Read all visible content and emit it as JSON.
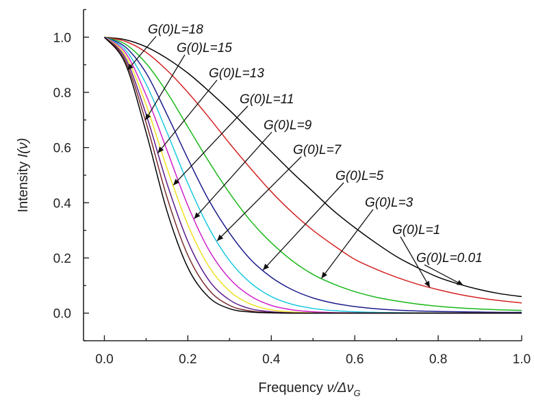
{
  "chart_data": {
    "type": "line",
    "xlabel_prefix": "Frequency",
    "xlabel_symbol": "ν/Δν",
    "xlabel_subscript": "G",
    "ylabel_prefix": "Intensity",
    "ylabel_symbol": "I(ν)",
    "xlim": [
      -0.05,
      1.0
    ],
    "ylim": [
      -0.1,
      1.1
    ],
    "x_ticks": [
      0.0,
      0.2,
      0.4,
      0.6,
      0.8,
      1.0
    ],
    "x_tick_labels": [
      "0.0",
      "0.2",
      "0.4",
      "0.6",
      "0.8",
      "1.0"
    ],
    "y_ticks": [
      0.0,
      0.2,
      0.4,
      0.6,
      0.8,
      1.0
    ],
    "y_tick_labels": [
      "0.0",
      "0.2",
      "0.4",
      "0.6",
      "0.8",
      "1.0"
    ],
    "grid": false,
    "label_prefix": "G(0)L",
    "series": [
      {
        "name": "G(0)L=0.01",
        "color": "#000000",
        "label_value": "=0.01",
        "x": [
          0.0,
          0.05,
          0.1,
          0.15,
          0.2,
          0.25,
          0.3,
          0.35,
          0.4,
          0.45,
          0.5,
          0.55,
          0.6,
          0.65,
          0.7,
          0.75,
          0.8,
          0.85,
          0.9,
          0.95,
          1.0
        ],
        "y": [
          1.0,
          0.991,
          0.965,
          0.923,
          0.87,
          0.805,
          0.735,
          0.66,
          0.585,
          0.51,
          0.44,
          0.37,
          0.31,
          0.255,
          0.205,
          0.165,
          0.13,
          0.105,
          0.085,
          0.07,
          0.06
        ]
      },
      {
        "name": "G(0)L=1",
        "color": "#d42020",
        "label_value": "=1",
        "x": [
          0.0,
          0.05,
          0.1,
          0.15,
          0.2,
          0.25,
          0.3,
          0.35,
          0.4,
          0.45,
          0.5,
          0.55,
          0.6,
          0.65,
          0.7,
          0.75,
          0.8,
          0.85,
          0.9,
          0.95,
          1.0
        ],
        "y": [
          1.0,
          0.985,
          0.945,
          0.88,
          0.8,
          0.71,
          0.615,
          0.525,
          0.44,
          0.365,
          0.3,
          0.245,
          0.195,
          0.16,
          0.13,
          0.105,
          0.085,
          0.068,
          0.055,
          0.045,
          0.037
        ]
      },
      {
        "name": "G(0)L=3",
        "color": "#18b818",
        "label_value": "=3",
        "x": [
          0.0,
          0.05,
          0.1,
          0.15,
          0.2,
          0.25,
          0.3,
          0.35,
          0.4,
          0.45,
          0.5,
          0.55,
          0.6,
          0.65,
          0.7,
          0.75,
          0.8,
          0.85,
          0.9,
          0.95,
          1.0
        ],
        "y": [
          1.0,
          0.975,
          0.905,
          0.8,
          0.675,
          0.55,
          0.435,
          0.335,
          0.255,
          0.19,
          0.14,
          0.105,
          0.078,
          0.058,
          0.044,
          0.033,
          0.025,
          0.019,
          0.015,
          0.012,
          0.01
        ]
      },
      {
        "name": "G(0)L=5",
        "color": "#1a1a8c",
        "label_value": "=5",
        "x": [
          0.0,
          0.05,
          0.1,
          0.15,
          0.2,
          0.25,
          0.3,
          0.35,
          0.4,
          0.45,
          0.5,
          0.55,
          0.6,
          0.65,
          0.7,
          0.75,
          0.8,
          0.85,
          0.9,
          0.95,
          1.0
        ],
        "y": [
          1.0,
          0.965,
          0.87,
          0.72,
          0.56,
          0.41,
          0.29,
          0.195,
          0.13,
          0.085,
          0.055,
          0.036,
          0.024,
          0.016,
          0.011,
          0.008,
          0.006,
          0.005,
          0.004,
          0.003,
          0.003
        ]
      },
      {
        "name": "G(0)L=7",
        "color": "#18c8e0",
        "label_value": "=7",
        "x": [
          0.0,
          0.05,
          0.1,
          0.15,
          0.2,
          0.25,
          0.3,
          0.35,
          0.4,
          0.45,
          0.5,
          0.55,
          0.6,
          0.65,
          0.7,
          0.75,
          0.8,
          0.85,
          0.9,
          0.95,
          1.0
        ],
        "y": [
          1.0,
          0.955,
          0.83,
          0.655,
          0.47,
          0.31,
          0.19,
          0.11,
          0.06,
          0.032,
          0.017,
          0.009,
          0.005,
          0.003,
          0.002,
          0.001,
          0.001,
          0.0,
          0.0,
          0.0,
          0.0
        ]
      },
      {
        "name": "G(0)L=9",
        "color": "#d020c8",
        "label_value": "=9",
        "x": [
          0.0,
          0.05,
          0.1,
          0.15,
          0.2,
          0.25,
          0.3,
          0.35,
          0.4,
          0.45,
          0.5,
          0.55,
          0.6,
          0.65,
          0.7,
          0.75,
          0.8,
          0.85,
          0.9,
          0.95,
          1.0
        ],
        "y": [
          1.0,
          0.945,
          0.79,
          0.59,
          0.39,
          0.23,
          0.125,
          0.062,
          0.028,
          0.012,
          0.005,
          0.002,
          0.001,
          0.0,
          0.0,
          0.0,
          0.0,
          0.0,
          0.0,
          0.0,
          0.0
        ]
      },
      {
        "name": "G(0)L=11",
        "color": "#f0e020",
        "label_value": "=11",
        "x": [
          0.0,
          0.05,
          0.1,
          0.15,
          0.2,
          0.25,
          0.3,
          0.35,
          0.4,
          0.45,
          0.5,
          0.55,
          0.6,
          0.65,
          0.7,
          0.75,
          0.8,
          0.85,
          0.9,
          0.95,
          1.0
        ],
        "y": [
          1.0,
          0.935,
          0.755,
          0.525,
          0.32,
          0.17,
          0.08,
          0.033,
          0.012,
          0.004,
          0.001,
          0.0,
          0.0,
          0.0,
          0.0,
          0.0,
          0.0,
          0.0,
          0.0,
          0.0,
          0.0
        ]
      },
      {
        "name": "G(0)L=13",
        "color": "#5a1a8a",
        "label_value": "=13",
        "x": [
          0.0,
          0.05,
          0.1,
          0.15,
          0.2,
          0.25,
          0.3,
          0.35,
          0.4,
          0.45,
          0.5,
          0.55,
          0.6,
          0.65,
          0.7,
          0.75,
          0.8,
          0.85,
          0.9,
          0.95,
          1.0
        ],
        "y": [
          1.0,
          0.925,
          0.72,
          0.47,
          0.26,
          0.12,
          0.048,
          0.016,
          0.005,
          0.001,
          0.0,
          0.0,
          0.0,
          0.0,
          0.0,
          0.0,
          0.0,
          0.0,
          0.0,
          0.0,
          0.0
        ]
      },
      {
        "name": "G(0)L=15",
        "color": "#7a2a2a",
        "label_value": "=15",
        "x": [
          0.0,
          0.05,
          0.1,
          0.15,
          0.2,
          0.25,
          0.3,
          0.35,
          0.4,
          0.45,
          0.5,
          0.55,
          0.6,
          0.65,
          0.7,
          0.75,
          0.8,
          0.85,
          0.9,
          0.95,
          1.0
        ],
        "y": [
          1.0,
          0.915,
          0.69,
          0.42,
          0.21,
          0.085,
          0.028,
          0.008,
          0.002,
          0.0,
          0.0,
          0.0,
          0.0,
          0.0,
          0.0,
          0.0,
          0.0,
          0.0,
          0.0,
          0.0,
          0.0
        ]
      },
      {
        "name": "G(0)L=18",
        "color": "#000000",
        "label_value": "=18",
        "x": [
          0.0,
          0.05,
          0.1,
          0.15,
          0.2,
          0.25,
          0.3,
          0.35,
          0.4,
          0.45,
          0.5,
          0.55,
          0.6,
          0.65,
          0.7,
          0.75,
          0.8,
          0.85,
          0.9,
          0.95,
          1.0
        ],
        "y": [
          1.0,
          0.905,
          0.655,
          0.37,
          0.165,
          0.058,
          0.016,
          0.004,
          0.001,
          0.0,
          0.0,
          0.0,
          0.0,
          0.0,
          0.0,
          0.0,
          0.0,
          0.0,
          0.0,
          0.0,
          0.0
        ]
      }
    ]
  }
}
